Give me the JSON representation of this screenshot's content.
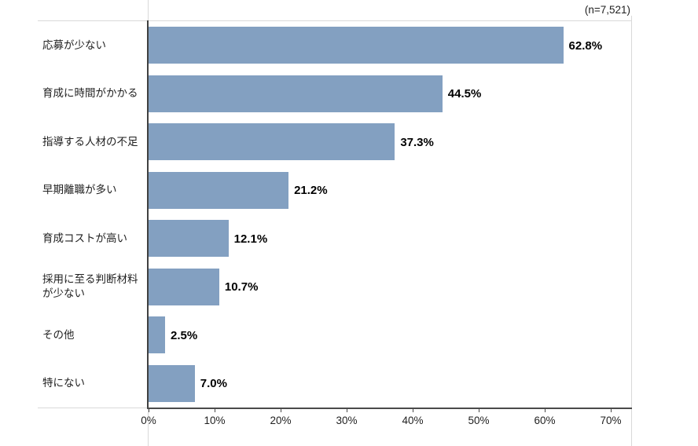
{
  "chart_data": {
    "type": "bar",
    "orientation": "horizontal",
    "title": "",
    "note": "(n=7,521)",
    "categories": [
      "応募が少ない",
      "育成に時間がかかる",
      "指導する人材の不足",
      "早期離職が多い",
      "育成コストが高い",
      "採用に至る判断材料\nが少ない",
      "その他",
      "特にない"
    ],
    "values": [
      62.8,
      44.5,
      37.3,
      21.2,
      12.1,
      10.7,
      2.5,
      7.0
    ],
    "value_labels": [
      "62.8%",
      "44.5%",
      "37.3%",
      "21.2%",
      "12.1%",
      "10.7%",
      "2.5%",
      "7.0%"
    ],
    "x_tick_labels": [
      "0%",
      "10%",
      "20%",
      "30%",
      "40%",
      "50%",
      "60%",
      "70%"
    ],
    "x_tick_values": [
      0,
      10,
      20,
      30,
      40,
      50,
      60,
      70
    ],
    "xlim": [
      0,
      73
    ],
    "xlabel": "",
    "ylabel": "",
    "grid": "off",
    "legend": "none",
    "bar_color": "#83a0c1",
    "axis_color": "#404040",
    "border_color": "#d9d9d9",
    "value_label_color": "#000000",
    "text_color": "#1f1f1f"
  }
}
